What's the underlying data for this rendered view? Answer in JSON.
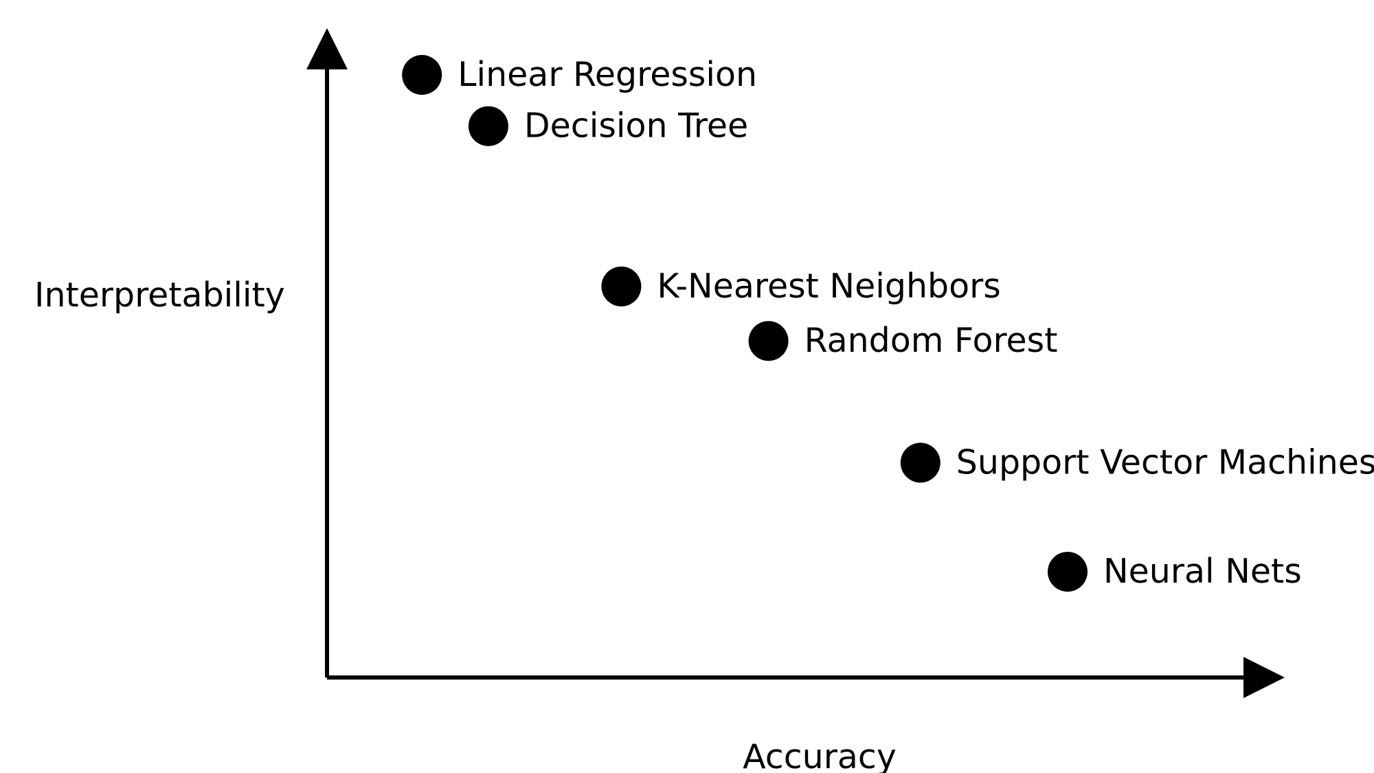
{
  "chart_data": {
    "type": "scatter",
    "title": "",
    "xlabel": "Accuracy",
    "ylabel": "Interpretability",
    "xlim": [
      0,
      100
    ],
    "ylim": [
      0,
      100
    ],
    "grid": false,
    "legend": "none",
    "colors": {
      "axis": "#000000",
      "point": "#000000",
      "text": "#000000"
    },
    "points": [
      {
        "label": "Linear Regression",
        "x": 10,
        "y": 94
      },
      {
        "label": "Decision Tree",
        "x": 17,
        "y": 86
      },
      {
        "label": "K-Nearest Neighbors",
        "x": 31,
        "y": 61
      },
      {
        "label": "Random Forest",
        "x": 46.5,
        "y": 52.5
      },
      {
        "label": "Support Vector Machines",
        "x": 62.5,
        "y": 33.5
      },
      {
        "label": "Neural Nets",
        "x": 78,
        "y": 16.5
      }
    ]
  }
}
